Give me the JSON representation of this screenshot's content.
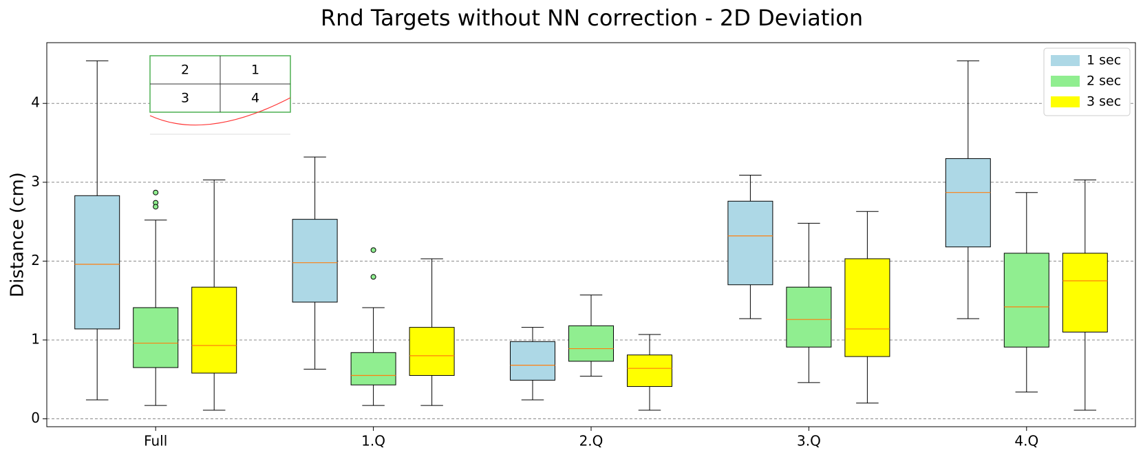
{
  "chart_data": {
    "type": "box",
    "title": "Rnd Targets without NN correction - 2D Deviation",
    "ylabel": "Distance (cm)",
    "categories": [
      "Full",
      "1.Q",
      "2.Q",
      "3.Q",
      "4.Q"
    ],
    "ylim": [
      -0.1,
      4.77
    ],
    "yticks": [
      0,
      1,
      2,
      3,
      4
    ],
    "grid": true,
    "legend": "upper right",
    "median_color": "#ff7f0e",
    "series": [
      {
        "name": "1 sec",
        "color": "#add8e6",
        "values": [
          {
            "min": 0.24,
            "q1": 1.14,
            "median": 1.96,
            "q3": 2.83,
            "max": 4.54,
            "outliers": []
          },
          {
            "min": 0.63,
            "q1": 1.48,
            "median": 1.98,
            "q3": 2.53,
            "max": 3.32,
            "outliers": []
          },
          {
            "min": 0.24,
            "q1": 0.49,
            "median": 0.68,
            "q3": 0.98,
            "max": 1.16,
            "outliers": []
          },
          {
            "min": 1.27,
            "q1": 1.7,
            "median": 2.32,
            "q3": 2.76,
            "max": 3.09,
            "outliers": []
          },
          {
            "min": 1.27,
            "q1": 2.18,
            "median": 2.87,
            "q3": 3.3,
            "max": 4.54,
            "outliers": []
          }
        ]
      },
      {
        "name": "2 sec",
        "color": "#90ee90",
        "values": [
          {
            "min": 0.17,
            "q1": 0.65,
            "median": 0.96,
            "q3": 1.41,
            "max": 2.52,
            "outliers": [
              2.87,
              2.74,
              2.69
            ]
          },
          {
            "min": 0.17,
            "q1": 0.43,
            "median": 0.55,
            "q3": 0.84,
            "max": 1.41,
            "outliers": [
              2.14,
              1.8
            ]
          },
          {
            "min": 0.54,
            "q1": 0.73,
            "median": 0.89,
            "q3": 1.18,
            "max": 1.57,
            "outliers": []
          },
          {
            "min": 0.46,
            "q1": 0.91,
            "median": 1.26,
            "q3": 1.67,
            "max": 2.48,
            "outliers": []
          },
          {
            "min": 0.34,
            "q1": 0.91,
            "median": 1.42,
            "q3": 2.1,
            "max": 2.87,
            "outliers": []
          }
        ]
      },
      {
        "name": "3 sec",
        "color": "#ffff00",
        "values": [
          {
            "min": 0.11,
            "q1": 0.58,
            "median": 0.93,
            "q3": 1.67,
            "max": 3.03,
            "outliers": []
          },
          {
            "min": 0.17,
            "q1": 0.55,
            "median": 0.8,
            "q3": 1.16,
            "max": 2.03,
            "outliers": []
          },
          {
            "min": 0.11,
            "q1": 0.41,
            "median": 0.64,
            "q3": 0.81,
            "max": 1.07,
            "outliers": []
          },
          {
            "min": 0.2,
            "q1": 0.79,
            "median": 1.14,
            "q3": 2.03,
            "max": 2.63,
            "outliers": []
          },
          {
            "min": 0.11,
            "q1": 1.1,
            "median": 1.75,
            "q3": 2.1,
            "max": 3.03,
            "outliers": []
          }
        ]
      }
    ],
    "inset": {
      "labels": [
        "2",
        "1",
        "3",
        "4"
      ]
    }
  }
}
